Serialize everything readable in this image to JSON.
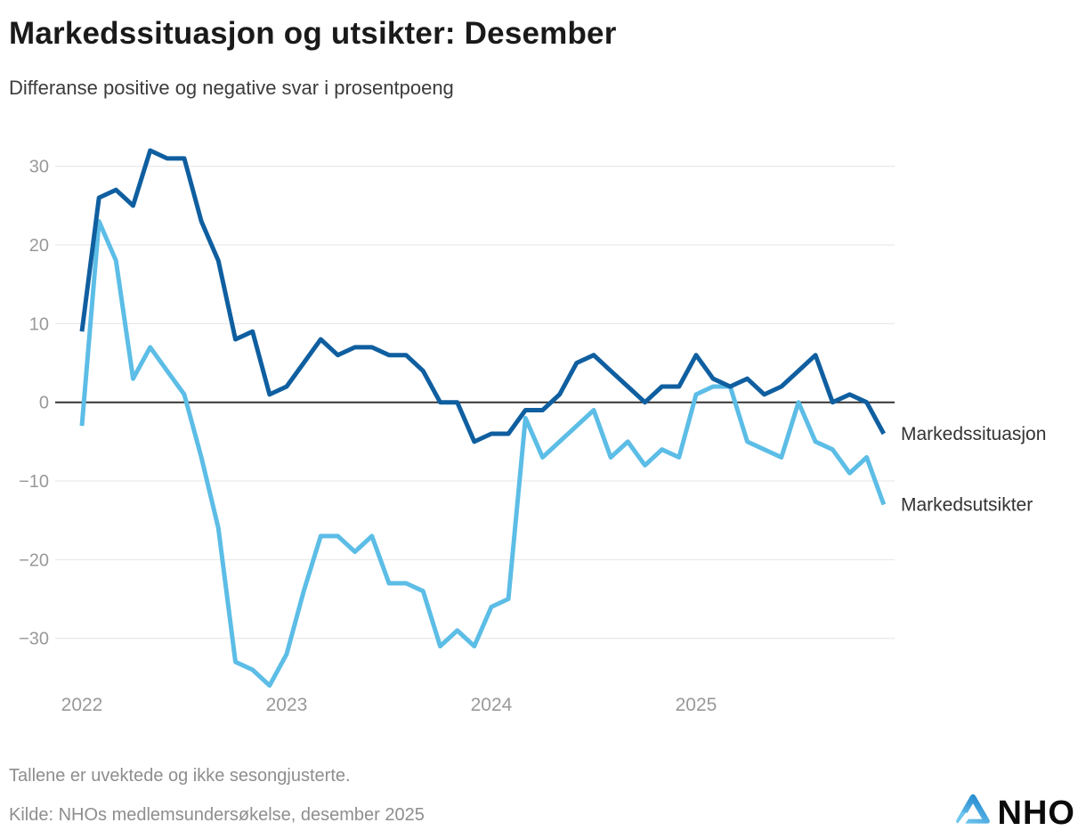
{
  "header": {
    "title": "Markedssituasjon og utsikter: Desember",
    "subtitle": "Differanse positive og negative svar i prosentpoeng"
  },
  "footer": {
    "note": "Tallene er uvektede og ikke sesongjusterte.",
    "source": "Kilde: NHOs medlemsundersøkelse, desember 2025",
    "logo_text": "NHO"
  },
  "colors": {
    "situasjon_line": "#0f5fa0",
    "utsikter_line": "#5cbde6",
    "zero_line": "#333333",
    "gridline": "#e4e4e4",
    "axis_label": "#999999",
    "end_label": "#333333"
  },
  "chart_data": {
    "type": "line",
    "title": "Markedssituasjon og utsikter: Desember",
    "subtitle": "Differanse positive og negative svar i prosentpoeng",
    "x_unit": "month",
    "x_start": "2022-01",
    "x_end": "2025-12",
    "x_tick_labels": [
      "2022",
      "2023",
      "2024",
      "2025"
    ],
    "x_tick_month_indices": [
      0,
      12,
      24,
      36
    ],
    "y_ticks": [
      30,
      20,
      10,
      0,
      -10,
      -20,
      -30
    ],
    "y_tick_labels": [
      "30",
      "20",
      "10",
      "0",
      "−10",
      "−20",
      "−30"
    ],
    "ylim": [
      -38,
      34
    ],
    "grid": true,
    "zero_line": true,
    "legend_position": "line-end-labels-right",
    "series": [
      {
        "name": "Markedssituasjon",
        "color": "#0f5fa0",
        "values": [
          9,
          26,
          27,
          25,
          32,
          31,
          31,
          23,
          18,
          8,
          9,
          1,
          2,
          5,
          8,
          6,
          7,
          7,
          6,
          6,
          4,
          0,
          0,
          -5,
          -4,
          -4,
          -1,
          -1,
          1,
          5,
          6,
          4,
          2,
          0,
          2,
          2,
          6,
          3,
          2,
          3,
          1,
          2,
          4,
          6,
          0,
          1,
          0,
          -4
        ]
      },
      {
        "name": "Markedsutsikter",
        "color": "#5cbde6",
        "values": [
          -3,
          23,
          18,
          3,
          7,
          4,
          1,
          -7,
          -16,
          -33,
          -34,
          -36,
          -32,
          -24,
          -17,
          -17,
          -19,
          -17,
          -23,
          -23,
          -24,
          -31,
          -29,
          -31,
          -26,
          -25,
          -2,
          -7,
          -5,
          -3,
          -1,
          -7,
          -5,
          -8,
          -6,
          -7,
          1,
          2,
          2,
          -5,
          -6,
          -7,
          0,
          -5,
          -6,
          -9,
          -7,
          -13
        ]
      }
    ]
  }
}
